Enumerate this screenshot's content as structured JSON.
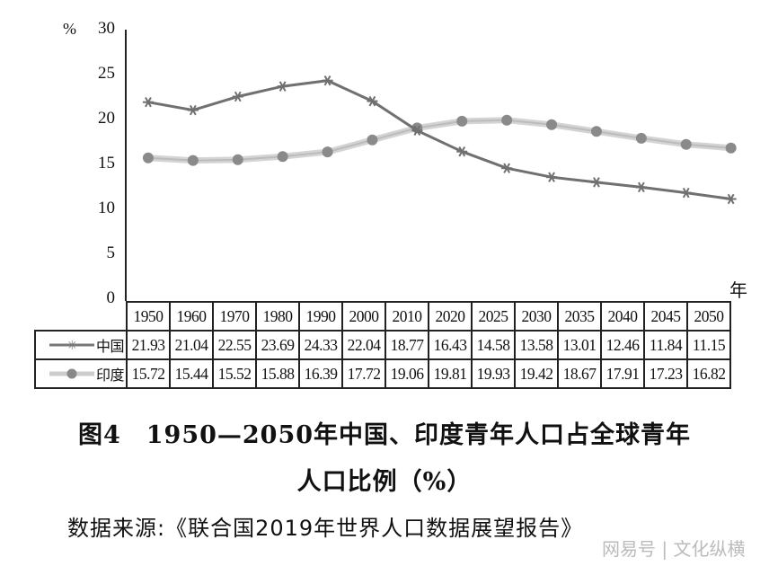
{
  "chart_data": {
    "type": "line",
    "title": "图4  1950—2050年中国、印度青年人口占全球青年人口比例（%）",
    "xlabel": "年",
    "ylabel": "%",
    "ylim": [
      0,
      30
    ],
    "yticks": [
      0,
      5,
      10,
      15,
      20,
      25,
      30
    ],
    "categories": [
      "1950",
      "1960",
      "1970",
      "1980",
      "1990",
      "2000",
      "2010",
      "2020",
      "2025",
      "2030",
      "2035",
      "2040",
      "2045",
      "2050"
    ],
    "series": [
      {
        "name": "中国",
        "marker": "asterisk",
        "color": "#777777",
        "values": [
          21.93,
          21.04,
          22.55,
          23.69,
          24.33,
          22.04,
          18.77,
          16.43,
          14.58,
          13.58,
          13.01,
          12.46,
          11.84,
          11.15
        ]
      },
      {
        "name": "印度",
        "marker": "circle",
        "color": "#999999",
        "values": [
          15.72,
          15.44,
          15.52,
          15.88,
          16.39,
          17.72,
          19.06,
          19.81,
          19.93,
          19.42,
          18.67,
          17.91,
          17.23,
          16.82
        ]
      }
    ],
    "grid": false,
    "legend_position": "data-table"
  },
  "axis": {
    "unit": "%",
    "x_unit": "年",
    "yticks": [
      "30",
      "25",
      "20",
      "15",
      "10",
      "5",
      "0"
    ]
  },
  "caption": {
    "line1": "图4　1950—2050年中国、印度青年人口占全球青年",
    "line2": "人口比例（%）",
    "source": "数据来源:《联合国2019年世界人口数据展望报告》"
  },
  "watermark": "网易号 | 文化纵横"
}
